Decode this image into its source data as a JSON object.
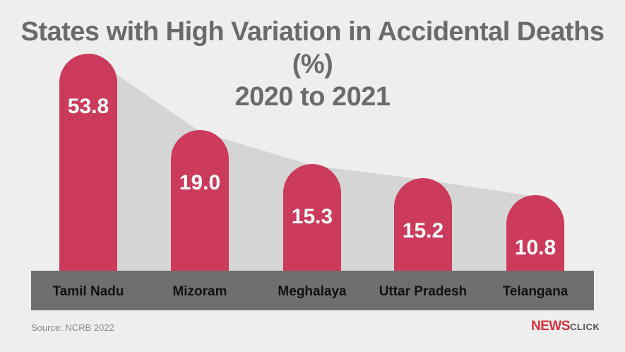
{
  "title_line1": "States with High Variation in Accidental Deaths (%)",
  "title_line2": "2020 to 2021",
  "source": "Source: NCRB 2022",
  "logo": {
    "news": "NEWS",
    "click": "CLICK"
  },
  "colors": {
    "bar": "#cc3a5c",
    "shadow": "#d6d5d5",
    "band": "#6f6f6f",
    "label": "#ffffff"
  },
  "chart_data": {
    "type": "bar",
    "categories": [
      "Tamil Nadu",
      "Mizoram",
      "Meghalaya",
      "Uttar Pradesh",
      "Telangana"
    ],
    "values": [
      53.8,
      19.0,
      15.3,
      15.2,
      10.8
    ],
    "data_labels": [
      "53.8",
      "19.0",
      "15.3",
      "15.2",
      "10.8"
    ],
    "title": "States with High Variation in Accidental Deaths (%) 2020 to 2021",
    "xlabel": "",
    "ylabel": "",
    "grid": false
  }
}
